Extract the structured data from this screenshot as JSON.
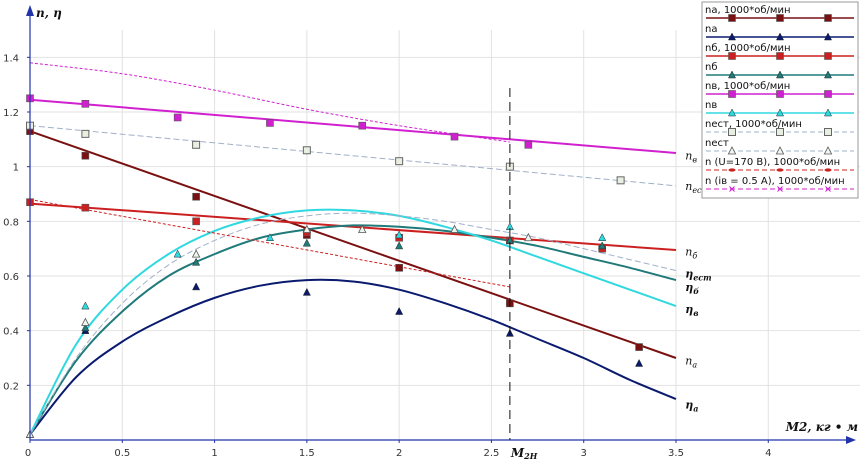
{
  "chart_data": {
    "type": "line",
    "ylabel": "n, η",
    "xlabel": "M2, кг • м",
    "xlim": [
      0,
      4.5
    ],
    "ylim": [
      0,
      1.5
    ],
    "x_ticks": [
      0,
      0.5,
      1,
      1.5,
      2,
      2.5,
      3,
      3.5,
      4
    ],
    "x_tick_labels": [
      "0",
      "0.5",
      "1",
      "1.5",
      "2",
      "2.5",
      "3",
      "3.5",
      "4"
    ],
    "y_ticks": [
      0.2,
      0.4,
      0.6,
      0.8,
      1,
      1.2,
      1.4
    ],
    "y_tick_labels": [
      "0.2",
      "0.4",
      "0.6",
      "0.8",
      "1",
      "1.2",
      "1.4"
    ],
    "marker_x": 2.6,
    "marker_label": "M2H",
    "grid": true,
    "legend_position": "top-right",
    "legend": [
      {
        "label": "nа, 1000*об/мин",
        "color": "#7a1010",
        "marker": "square",
        "dash": false
      },
      {
        "label": "nа",
        "color": "#0a1a6e",
        "marker": "triangle",
        "dash": false
      },
      {
        "label": "nб, 1000*об/мин",
        "color": "#cc2020",
        "marker": "square",
        "dash": false
      },
      {
        "label": "nб",
        "color": "#217a7a",
        "marker": "triangle",
        "dash": false
      },
      {
        "label": "nв, 1000*об/мин",
        "color": "#d020d0",
        "marker": "square",
        "dash": false
      },
      {
        "label": "nв",
        "color": "#30d8e0",
        "marker": "triangle",
        "dash": false
      },
      {
        "label": "nест, 1000*об/мин",
        "color": "#a0b0c8",
        "marker": "square-open",
        "dash": true
      },
      {
        "label": "nест",
        "color": "#a0b0c8",
        "marker": "triangle-open",
        "dash": true
      },
      {
        "label": "n (U=170 В), 1000*об/мин",
        "color": "#cc2020",
        "marker": "dot",
        "dash": true
      },
      {
        "label": "n (iв = 0.5 А), 1000*об/мин",
        "color": "#d020d0",
        "marker": "cross",
        "dash": true
      }
    ],
    "curve_labels": [
      {
        "text": "nв",
        "main": "n",
        "sub": "в",
        "x": 3.55,
        "y": 1.04,
        "bold": false
      },
      {
        "text": "nест",
        "main": "n",
        "sub": "ест",
        "x": 3.55,
        "y": 0.93,
        "bold": false
      },
      {
        "text": "nб",
        "main": "n",
        "sub": "б",
        "x": 3.55,
        "y": 0.69,
        "bold": false
      },
      {
        "text": "ηест",
        "main": "η",
        "sub": "ест",
        "x": 3.55,
        "y": 0.61,
        "bold": true
      },
      {
        "text": "ηб",
        "main": "η",
        "sub": "б",
        "x": 3.55,
        "y": 0.56,
        "bold": true
      },
      {
        "text": "ηв",
        "main": "η",
        "sub": "в",
        "x": 3.55,
        "y": 0.48,
        "bold": true
      },
      {
        "text": "nа",
        "main": "n",
        "sub": "а",
        "x": 3.55,
        "y": 0.29,
        "bold": false
      },
      {
        "text": "ηа",
        "main": "η",
        "sub": "а",
        "x": 3.55,
        "y": 0.13,
        "bold": true
      }
    ],
    "series": [
      {
        "name": "nа, 1000*об/мин",
        "kind": "n",
        "color": "#7a1010",
        "marker": "square",
        "line_x": [
          0,
          3.5
        ],
        "line_y": [
          1.13,
          0.3
        ],
        "points": [
          [
            0,
            1.13
          ],
          [
            0.3,
            1.04
          ],
          [
            0.9,
            0.89
          ],
          [
            1.5,
            0.75
          ],
          [
            2,
            0.63
          ],
          [
            2.6,
            0.5
          ],
          [
            3.3,
            0.34
          ]
        ]
      },
      {
        "name": "nб, 1000*об/мин",
        "kind": "n",
        "color": "#cc2020",
        "marker": "square",
        "line_x": [
          0,
          3.5
        ],
        "line_y": [
          0.865,
          0.695
        ],
        "points": [
          [
            0,
            0.87
          ],
          [
            0.3,
            0.85
          ],
          [
            0.9,
            0.8
          ],
          [
            1.5,
            0.76
          ],
          [
            2,
            0.74
          ],
          [
            2.6,
            0.73
          ],
          [
            3.1,
            0.7
          ]
        ]
      },
      {
        "name": "nв, 1000*об/мин",
        "kind": "n",
        "color": "#d020d0",
        "marker": "square",
        "line_x": [
          0,
          3.5
        ],
        "line_y": [
          1.245,
          1.05
        ],
        "points": [
          [
            0,
            1.25
          ],
          [
            0.3,
            1.23
          ],
          [
            0.8,
            1.18
          ],
          [
            1.3,
            1.16
          ],
          [
            1.8,
            1.15
          ],
          [
            2.3,
            1.11
          ],
          [
            2.7,
            1.08
          ]
        ]
      },
      {
        "name": "nест, 1000*об/мин",
        "kind": "n",
        "color": "#a0b0c8",
        "marker": "square-open",
        "dash": true,
        "line_x": [
          0,
          3.5
        ],
        "line_y": [
          1.15,
          0.93
        ],
        "points": [
          [
            0,
            1.15
          ],
          [
            0.3,
            1.12
          ],
          [
            0.9,
            1.08
          ],
          [
            1.5,
            1.06
          ],
          [
            2,
            1.02
          ],
          [
            2.6,
            1.0
          ],
          [
            3.2,
            0.95
          ]
        ]
      },
      {
        "name": "nа",
        "kind": "eta",
        "color": "#0a1a6e",
        "marker": "triangle",
        "line_x": [
          0,
          0.25,
          0.5,
          0.75,
          1,
          1.25,
          1.5,
          1.75,
          2,
          2.25,
          2.5,
          2.75,
          3,
          3.25,
          3.5
        ],
        "line_y": [
          0.02,
          0.23,
          0.36,
          0.45,
          0.52,
          0.565,
          0.585,
          0.58,
          0.55,
          0.5,
          0.44,
          0.37,
          0.3,
          0.22,
          0.15
        ],
        "points": [
          [
            0,
            0.02
          ],
          [
            0.3,
            0.4
          ],
          [
            0.9,
            0.56
          ],
          [
            1.5,
            0.54
          ],
          [
            2,
            0.47
          ],
          [
            2.6,
            0.39
          ],
          [
            3.3,
            0.28
          ]
        ]
      },
      {
        "name": "nб",
        "kind": "eta",
        "color": "#217a7a",
        "marker": "triangle",
        "line_x": [
          0,
          0.25,
          0.5,
          0.75,
          1,
          1.25,
          1.5,
          1.75,
          2,
          2.25,
          2.5,
          2.75,
          3,
          3.25,
          3.5
        ],
        "line_y": [
          0.02,
          0.29,
          0.47,
          0.6,
          0.68,
          0.74,
          0.77,
          0.785,
          0.78,
          0.765,
          0.74,
          0.71,
          0.67,
          0.63,
          0.585
        ],
        "points": [
          [
            0,
            0.02
          ],
          [
            0.3,
            0.41
          ],
          [
            0.9,
            0.65
          ],
          [
            1.5,
            0.72
          ],
          [
            2,
            0.71
          ],
          [
            2.6,
            0.73
          ],
          [
            3.1,
            0.71
          ]
        ]
      },
      {
        "name": "nв",
        "kind": "eta",
        "color": "#30d8e0",
        "marker": "triangle",
        "line_x": [
          0,
          0.25,
          0.5,
          0.75,
          1,
          1.25,
          1.5,
          1.75,
          2,
          2.25,
          2.5,
          2.75,
          3,
          3.25,
          3.5
        ],
        "line_y": [
          0.02,
          0.35,
          0.55,
          0.68,
          0.765,
          0.815,
          0.84,
          0.84,
          0.82,
          0.78,
          0.73,
          0.67,
          0.61,
          0.55,
          0.49
        ],
        "points": [
          [
            0,
            0.02
          ],
          [
            0.3,
            0.49
          ],
          [
            0.8,
            0.68
          ],
          [
            1.3,
            0.74
          ],
          [
            2,
            0.75
          ],
          [
            2.6,
            0.78
          ],
          [
            3.1,
            0.74
          ]
        ]
      },
      {
        "name": "nест",
        "kind": "eta",
        "color": "#a0b0c8",
        "marker": "triangle-open",
        "dash": true,
        "line_x": [
          0,
          0.25,
          0.5,
          0.75,
          1,
          1.25,
          1.5,
          1.75,
          2,
          2.25,
          2.5,
          2.75,
          3,
          3.25,
          3.5
        ],
        "line_y": [
          0.02,
          0.3,
          0.5,
          0.64,
          0.73,
          0.79,
          0.82,
          0.83,
          0.82,
          0.8,
          0.77,
          0.74,
          0.7,
          0.66,
          0.62
        ],
        "points": [
          [
            0,
            0.02
          ],
          [
            0.3,
            0.43
          ],
          [
            0.9,
            0.68
          ],
          [
            1.5,
            0.77
          ],
          [
            1.8,
            0.77
          ],
          [
            2.3,
            0.77
          ],
          [
            2.7,
            0.74
          ]
        ]
      },
      {
        "name": "n (U=170 В), 1000*об/мин",
        "kind": "n",
        "color": "#cc2020",
        "marker": "dot",
        "dash": true,
        "line_x": [
          0,
          2.6
        ],
        "line_y": [
          0.88,
          0.56
        ],
        "points": []
      },
      {
        "name": "n (iв = 0.5 А), 1000*об/мин",
        "kind": "n",
        "color": "#d020d0",
        "marker": "cross",
        "dash": true,
        "line_x": [
          0,
          0.5,
          1,
          1.5,
          2,
          2.5,
          2.6
        ],
        "line_y": [
          1.38,
          1.34,
          1.28,
          1.21,
          1.15,
          1.1,
          1.09
        ],
        "points": []
      }
    ]
  }
}
